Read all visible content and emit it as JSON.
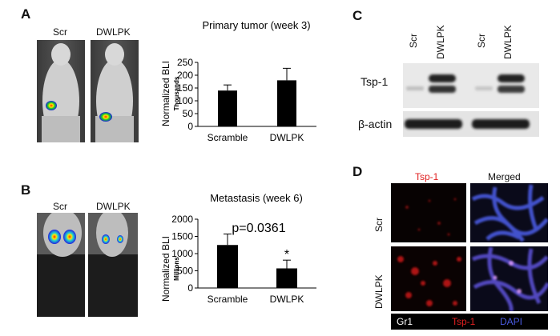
{
  "panels": {
    "A": {
      "letter": "A",
      "photo_labels": [
        "Scr",
        "DWLPK"
      ],
      "chart_data": {
        "type": "bar",
        "title": "Primary tumor (week 3)",
        "ylabel": "Normalized BLI",
        "yunit": "Thousands",
        "categories": [
          "Scramble",
          "DWLPK"
        ],
        "values": [
          140,
          180
        ],
        "errors": [
          22,
          47
        ],
        "ylim": [
          0,
          250
        ],
        "yticks": [
          "0",
          "50",
          "100",
          "150",
          "200",
          "250"
        ],
        "bar_color": "#000000"
      }
    },
    "B": {
      "letter": "B",
      "photo_labels": [
        "Scr",
        "DWLPK"
      ],
      "chart_data": {
        "type": "bar",
        "title": "Metastasis (week 6)",
        "ylabel": "Normalized BLI",
        "yunit": "Millions",
        "categories": [
          "Scramble",
          "DWLPK"
        ],
        "values": [
          1250,
          570
        ],
        "errors": [
          320,
          240
        ],
        "ylim": [
          0,
          2000
        ],
        "yticks": [
          "0",
          "500",
          "1000",
          "1500",
          "2000"
        ],
        "annotation": "p=0.0361",
        "significance_mark": "*",
        "bar_color": "#000000"
      }
    },
    "C": {
      "letter": "C",
      "lanes": [
        "Scr",
        "DWLPK",
        "Scr",
        "DWLPK"
      ],
      "rows": [
        "Tsp-1",
        "β-actin"
      ]
    },
    "D": {
      "letter": "D",
      "columns": [
        "Tsp-1",
        "Merged"
      ],
      "rows": [
        "Scr",
        "DWLPK"
      ],
      "legend": [
        "Gr1",
        "Tsp-1",
        "DAPI"
      ],
      "colors": {
        "tsp1": "#e02020",
        "dapi": "#4a5ae0",
        "gr1": "#ffffff"
      }
    }
  }
}
